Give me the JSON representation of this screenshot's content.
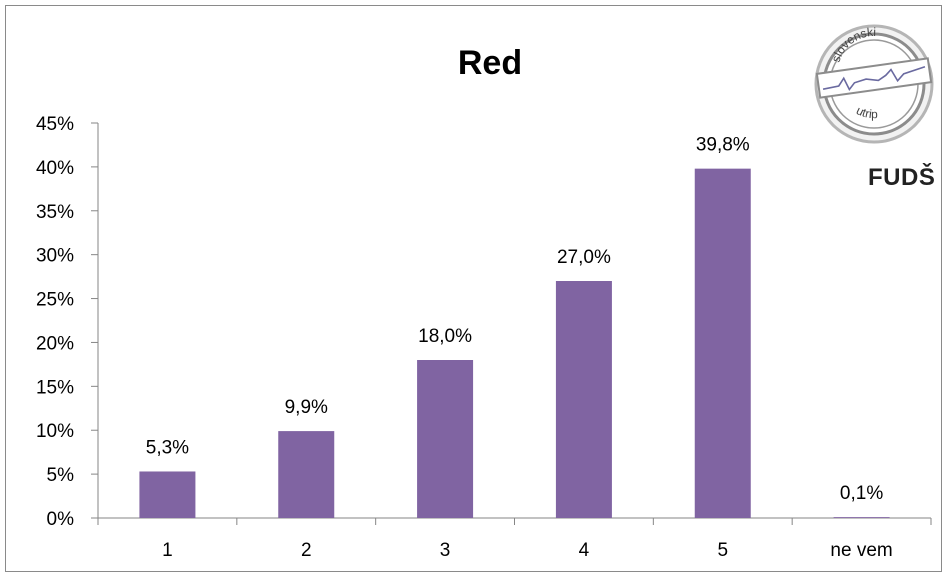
{
  "chart_data": {
    "type": "bar",
    "title": "Red",
    "categories": [
      "1",
      "2",
      "3",
      "4",
      "5",
      "ne vem"
    ],
    "values": [
      5.3,
      9.9,
      18.0,
      27.0,
      39.8,
      0.1
    ],
    "data_labels": [
      "5,3%",
      "9,9%",
      "18,0%",
      "27,0%",
      "39,8%",
      "0,1%"
    ],
    "y_ticks": [
      "0%",
      "5%",
      "10%",
      "15%",
      "20%",
      "25%",
      "30%",
      "35%",
      "40%",
      "45%"
    ],
    "ylim": [
      0,
      45
    ],
    "xlabel": "",
    "ylabel": "",
    "grid": false,
    "legend": "none",
    "bar_color": "#8064a2"
  },
  "logo": {
    "seal_top": "slovenski",
    "seal_bottom": "utrip",
    "wordmark": "FUDŠ"
  }
}
